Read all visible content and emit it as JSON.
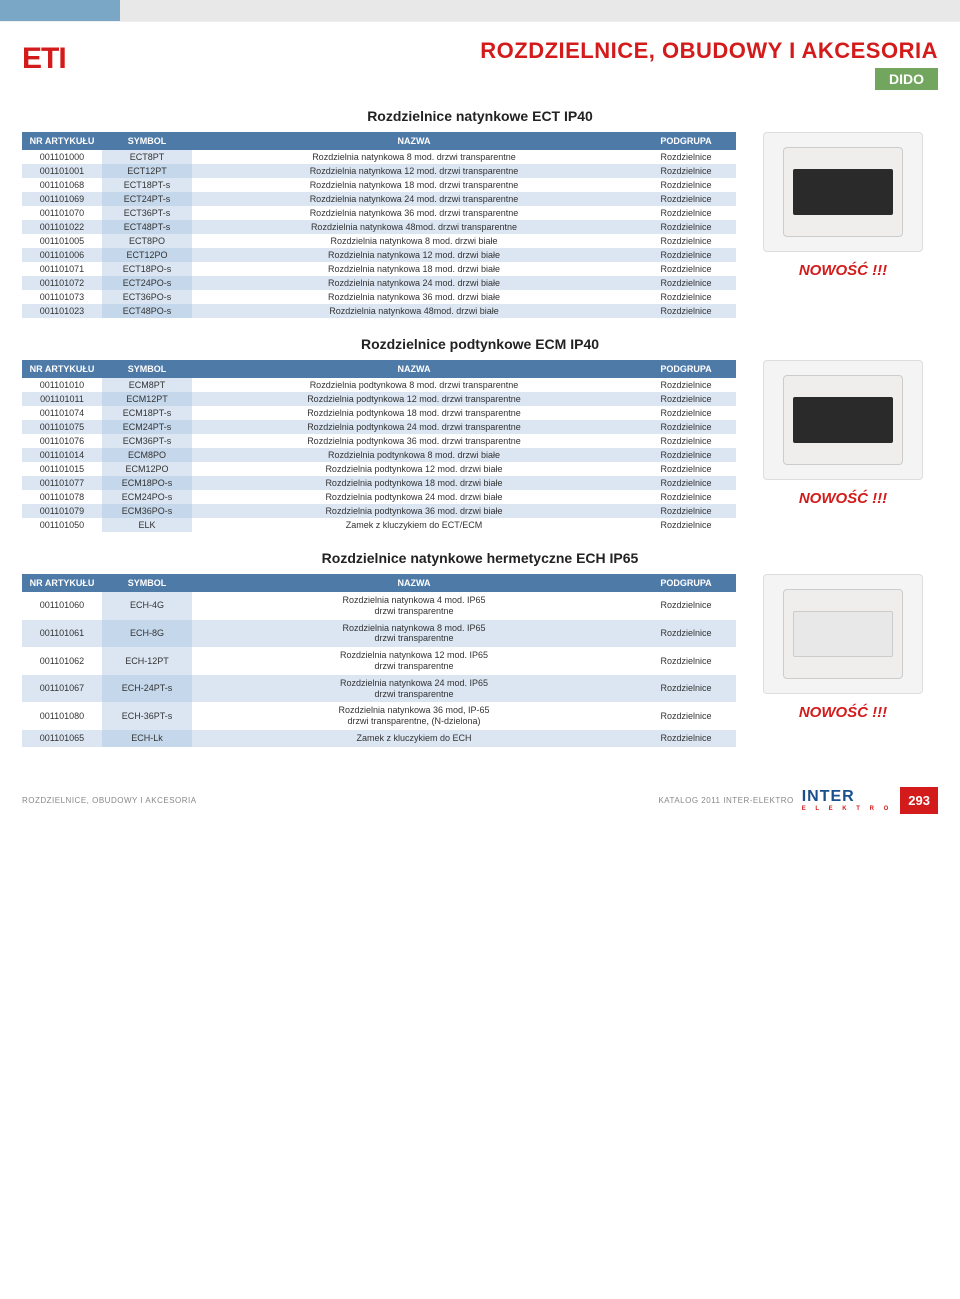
{
  "brand": {
    "logo_text": "ETI"
  },
  "header": {
    "main_title": "ROZDZIELNICE, OBUDOWY I AKCESORIA",
    "badge": "DIDO"
  },
  "novelty_label": "NOWOŚĆ !!!",
  "table_headers": {
    "nr": "NR ARTYKUŁU",
    "symbol": "SYMBOL",
    "nazwa": "NAZWA",
    "podgrupa": "PODGRUPA"
  },
  "sections": [
    {
      "title": "Rozdzielnice natynkowe ECT IP40",
      "product_style": "dark",
      "rows": [
        {
          "nr": "001101000",
          "sym": "ECT8PT",
          "name": "Rozdzielnia natynkowa 8 mod. drzwi transparentne",
          "pod": "Rozdzielnice"
        },
        {
          "nr": "001101001",
          "sym": "ECT12PT",
          "name": "Rozdzielnia natynkowa 12 mod. drzwi transparentne",
          "pod": "Rozdzielnice"
        },
        {
          "nr": "001101068",
          "sym": "ECT18PT-s",
          "name": "Rozdzielnia natynkowa 18 mod. drzwi transparentne",
          "pod": "Rozdzielnice"
        },
        {
          "nr": "001101069",
          "sym": "ECT24PT-s",
          "name": "Rozdzielnia natynkowa 24 mod. drzwi transparentne",
          "pod": "Rozdzielnice"
        },
        {
          "nr": "001101070",
          "sym": "ECT36PT-s",
          "name": "Rozdzielnia natynkowa 36 mod. drzwi transparentne",
          "pod": "Rozdzielnice"
        },
        {
          "nr": "001101022",
          "sym": "ECT48PT-s",
          "name": "Rozdzielnia natynkowa 48mod. drzwi transparentne",
          "pod": "Rozdzielnice"
        },
        {
          "nr": "001101005",
          "sym": "ECT8PO",
          "name": "Rozdzielnia natynkowa 8 mod. drzwi białe",
          "pod": "Rozdzielnice"
        },
        {
          "nr": "001101006",
          "sym": "ECT12PO",
          "name": "Rozdzielnia natynkowa 12 mod. drzwi białe",
          "pod": "Rozdzielnice"
        },
        {
          "nr": "001101071",
          "sym": "ECT18PO-s",
          "name": "Rozdzielnia natynkowa 18 mod. drzwi białe",
          "pod": "Rozdzielnice"
        },
        {
          "nr": "001101072",
          "sym": "ECT24PO-s",
          "name": "Rozdzielnia natynkowa 24 mod. drzwi białe",
          "pod": "Rozdzielnice"
        },
        {
          "nr": "001101073",
          "sym": "ECT36PO-s",
          "name": "Rozdzielnia natynkowa 36 mod. drzwi białe",
          "pod": "Rozdzielnice"
        },
        {
          "nr": "001101023",
          "sym": "ECT48PO-s",
          "name": "Rozdzielnia natynkowa 48mod. drzwi białe",
          "pod": "Rozdzielnice"
        }
      ]
    },
    {
      "title": "Rozdzielnice podtynkowe ECM IP40",
      "product_style": "dark",
      "rows": [
        {
          "nr": "001101010",
          "sym": "ECM8PT",
          "name": "Rozdzielnia podtynkowa 8 mod. drzwi transparentne",
          "pod": "Rozdzielnice"
        },
        {
          "nr": "001101011",
          "sym": "ECM12PT",
          "name": "Rozdzielnia podtynkowa 12 mod. drzwi transparentne",
          "pod": "Rozdzielnice"
        },
        {
          "nr": "001101074",
          "sym": "ECM18PT-s",
          "name": "Rozdzielnia podtynkowa 18 mod. drzwi transparentne",
          "pod": "Rozdzielnice"
        },
        {
          "nr": "001101075",
          "sym": "ECM24PT-s",
          "name": "Rozdzielnia podtynkowa 24 mod. drzwi transparentne",
          "pod": "Rozdzielnice"
        },
        {
          "nr": "001101076",
          "sym": "ECM36PT-s",
          "name": "Rozdzielnia podtynkowa 36 mod. drzwi transparentne",
          "pod": "Rozdzielnice"
        },
        {
          "nr": "001101014",
          "sym": "ECM8PO",
          "name": "Rozdzielnia podtynkowa 8 mod. drzwi białe",
          "pod": "Rozdzielnice"
        },
        {
          "nr": "001101015",
          "sym": "ECM12PO",
          "name": "Rozdzielnia podtynkowa 12 mod. drzwi białe",
          "pod": "Rozdzielnice"
        },
        {
          "nr": "001101077",
          "sym": "ECM18PO-s",
          "name": "Rozdzielnia podtynkowa 18 mod. drzwi białe",
          "pod": "Rozdzielnice"
        },
        {
          "nr": "001101078",
          "sym": "ECM24PO-s",
          "name": "Rozdzielnia podtynkowa 24 mod. drzwi białe",
          "pod": "Rozdzielnice"
        },
        {
          "nr": "001101079",
          "sym": "ECM36PO-s",
          "name": "Rozdzielnia podtynkowa 36 mod. drzwi białe",
          "pod": "Rozdzielnice"
        },
        {
          "nr": "001101050",
          "sym": "ELK",
          "name": "Zamek z kluczykiem do ECT/ECM",
          "pod": "Rozdzielnice"
        }
      ]
    },
    {
      "title": "Rozdzielnice natynkowe hermetyczne ECH IP65",
      "product_style": "light",
      "multiline": true,
      "rows": [
        {
          "nr": "001101060",
          "sym": "ECH-4G",
          "name": "Rozdzielnia natynkowa 4 mod. IP65\ndrzwi transparentne",
          "pod": "Rozdzielnice"
        },
        {
          "nr": "001101061",
          "sym": "ECH-8G",
          "name": "Rozdzielnia natynkowa 8 mod. IP65\ndrzwi transparentne",
          "pod": "Rozdzielnice"
        },
        {
          "nr": "001101062",
          "sym": "ECH-12PT",
          "name": "Rozdzielnia natynkowa 12 mod. IP65\ndrzwi transparentne",
          "pod": "Rozdzielnice"
        },
        {
          "nr": "001101067",
          "sym": "ECH-24PT-s",
          "name": "Rozdzielnia natynkowa 24 mod. IP65\ndrzwi transparentne",
          "pod": "Rozdzielnice"
        },
        {
          "nr": "001101080",
          "sym": "ECH-36PT-s",
          "name": "Rozdzielnia natynkowa 36 mod, IP-65\ndrzwi transparentne, (N-dzielona)",
          "pod": "Rozdzielnice"
        },
        {
          "nr": "001101065",
          "sym": "ECH-Lk",
          "name": "Zamek z kluczykiem do ECH",
          "pod": "Rozdzielnice"
        }
      ]
    }
  ],
  "footer": {
    "left": "ROZDZIELNICE, OBUDOWY I AKCESORIA",
    "catalog": "KATALOG 2011 INTER-ELEKTRO",
    "logo_top": "INTER",
    "logo_bottom": "E L E K T R O",
    "page_num": "293"
  },
  "colors": {
    "header_bg": "#4e7aa8",
    "row_alt": "#dbe6f2",
    "accent_red": "#d31b1b",
    "accent_green": "#72a65e"
  }
}
